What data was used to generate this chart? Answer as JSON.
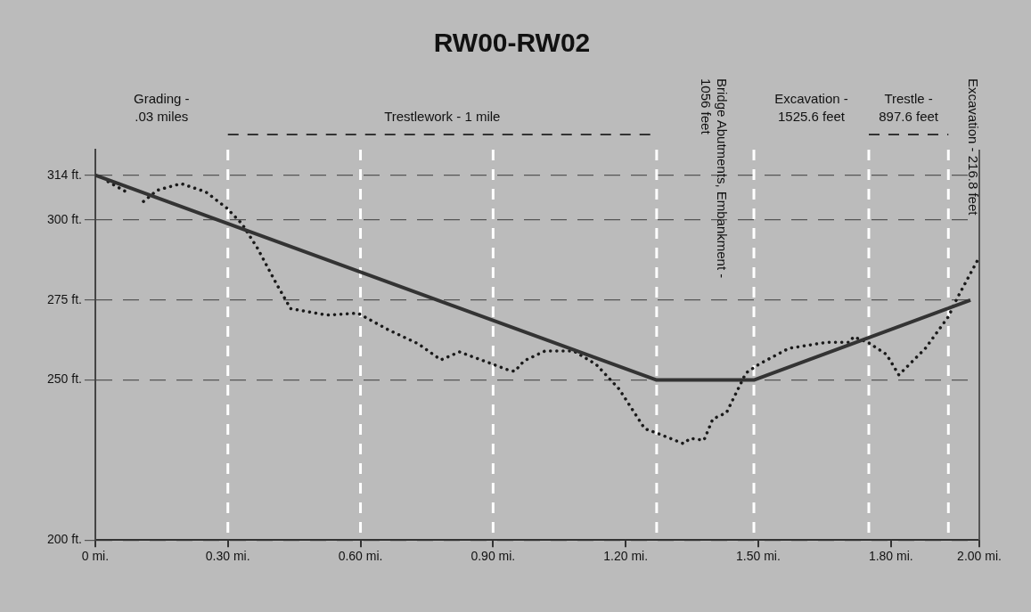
{
  "chart_data": {
    "type": "line",
    "title": "RW00-RW02",
    "xlim": [
      0,
      2
    ],
    "xticks": [
      {
        "value": 0,
        "label": "0 mi."
      },
      {
        "value": 0.3,
        "label": "0.30 mi."
      },
      {
        "value": 0.6,
        "label": "0.60 mi."
      },
      {
        "value": 0.9,
        "label": "0.90 mi."
      },
      {
        "value": 1.2,
        "label": "1.20 mi."
      },
      {
        "value": 1.5,
        "label": "1.50 mi."
      },
      {
        "value": 1.8,
        "label": "1.80 mi."
      },
      {
        "value": 2,
        "label": "2.00 mi."
      }
    ],
    "ylim": [
      200,
      322
    ],
    "yticks": [
      {
        "value": 200,
        "label": "200 ft."
      },
      {
        "value": 250,
        "label": "250 ft."
      },
      {
        "value": 275,
        "label": "275 ft."
      },
      {
        "value": 300,
        "label": "300 ft."
      },
      {
        "value": 314,
        "label": "314 ft."
      }
    ],
    "grid": "y",
    "legend": false,
    "marker": "none",
    "series": [
      {
        "type": "line",
        "color": "#333333",
        "line_style": "solid",
        "x": [
          0,
          1.27,
          1.49,
          1.98
        ],
        "values": [
          314,
          250,
          250,
          275
        ]
      },
      {
        "type": "line",
        "color": "#1a1a1a",
        "line_style": "dotted",
        "x": [
          0.029,
          0.07,
          0.09,
          0.109,
          0.14,
          0.194,
          0.25,
          0.297,
          0.332,
          0.367,
          0.409,
          0.442,
          0.524,
          0.594,
          0.663,
          0.731,
          0.782,
          0.824,
          0.894,
          0.931,
          0.949,
          0.97,
          1.018,
          1.082,
          1.133,
          1.185,
          1.243,
          1.28,
          1.331,
          1.346,
          1.377,
          1.397,
          1.428,
          1.472,
          1.501,
          1.569,
          1.655,
          1.707,
          1.715,
          1.748,
          1.79,
          1.818,
          1.878,
          1.93,
          1.95,
          1.996
        ],
        "values": [
          312,
          308.8,
          null,
          305.8,
          309.3,
          311.4,
          308.8,
          303.8,
          298.8,
          291.2,
          280.3,
          272.3,
          270.3,
          270.9,
          265.7,
          261.3,
          256.3,
          258.8,
          255.2,
          253.3,
          252.7,
          256,
          259.1,
          259.1,
          254.9,
          247.2,
          234.8,
          232.9,
          230.1,
          231.8,
          231.2,
          237.8,
          239.8,
          252.2,
          254.9,
          259.9,
          261.8,
          261.8,
          263.5,
          261.8,
          258,
          251.6,
          259.9,
          269.8,
          275.6,
          287.4
        ]
      }
    ],
    "ref_lines": [
      {
        "axis": "x",
        "value": 0.3,
        "color": "#ffffff",
        "line_style": "dashed"
      },
      {
        "axis": "x",
        "value": 0.6,
        "color": "#ffffff",
        "line_style": "dashed"
      },
      {
        "axis": "x",
        "value": 0.9,
        "color": "#ffffff",
        "line_style": "dashed"
      },
      {
        "axis": "x",
        "value": 1.27,
        "color": "#ffffff",
        "line_style": "dashed"
      },
      {
        "axis": "x",
        "value": 1.49,
        "color": "#ffffff",
        "line_style": "dashed"
      },
      {
        "axis": "x",
        "value": 1.75,
        "color": "#ffffff",
        "line_style": "dashed"
      },
      {
        "axis": "x",
        "value": 1.93,
        "color": "#ffffff",
        "line_style": "dashed"
      }
    ],
    "annotations": [
      "Grading - .03 miles",
      "Trestlework - 1 mile",
      "Bridge Abutments, Embankment - 1056 feet",
      "Excavation - 1525.6 feet",
      "Trestle - 897.6 feet",
      "Excavation - 216.8 feet"
    ]
  }
}
